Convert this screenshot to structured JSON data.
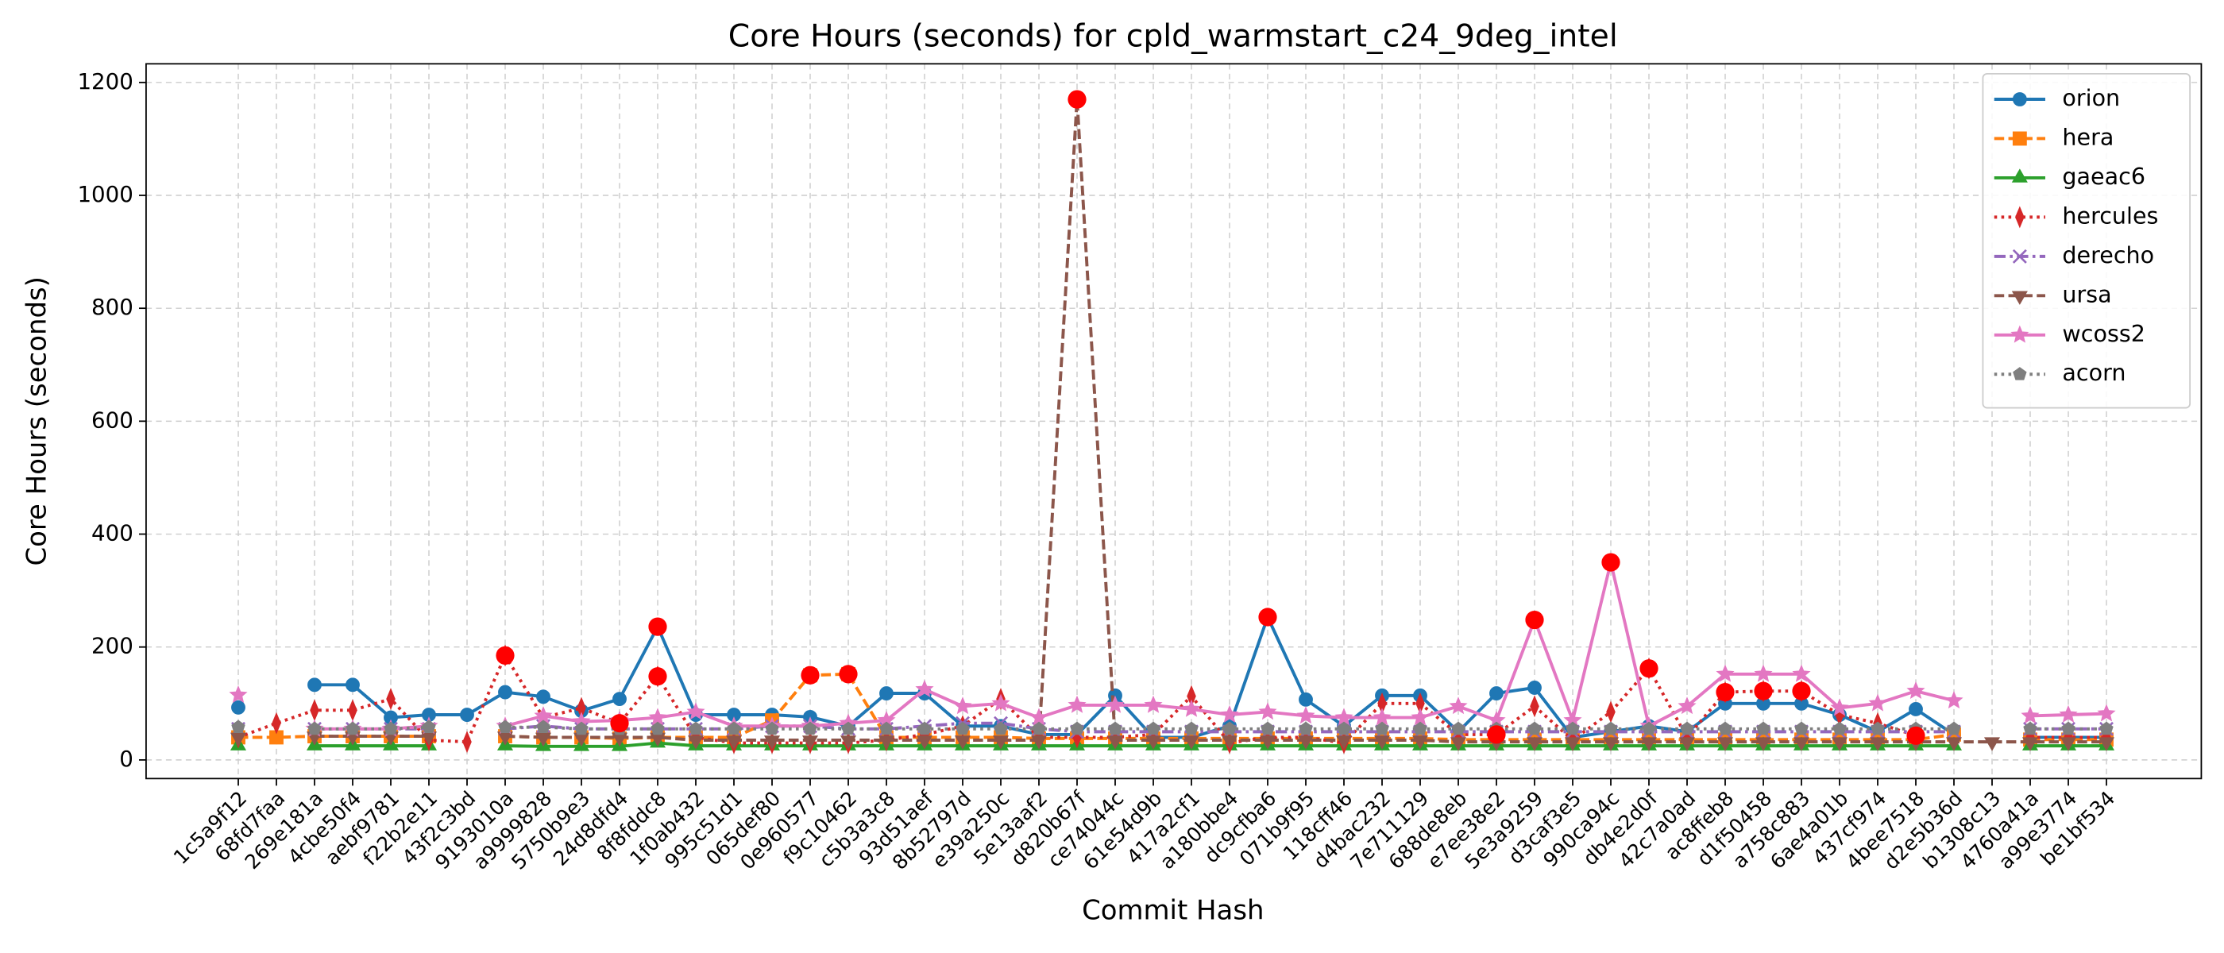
{
  "chart_data": {
    "type": "line",
    "title": "Core Hours (seconds) for cpld_warmstart_c24_9deg_intel",
    "xlabel": "Commit Hash",
    "ylabel": "Core Hours (seconds)",
    "categories": [
      "1c5a9f12",
      "68fd7faa",
      "269e181a",
      "4cbe50f4",
      "aebf9781",
      "f22b2e11",
      "43f2c3bd",
      "9193010a",
      "a9999828",
      "5750b9e3",
      "24d8dfd4",
      "8f8fddc8",
      "1f0ab432",
      "995c51d1",
      "065def80",
      "0e960577",
      "f9c10462",
      "c5b3a3c8",
      "93d51aef",
      "8b52797d",
      "e39a250c",
      "5e13aaf2",
      "d820b67f",
      "ce74044c",
      "61e54d9b",
      "417a2cf1",
      "a180bbe4",
      "dc9cfba6",
      "071b9f95",
      "118cff46",
      "d4bac232",
      "7e711129",
      "688de8eb",
      "e7ee38e2",
      "5e3a9259",
      "d3caf3e5",
      "990ca94c",
      "db4e2d0f",
      "42c7a0ad",
      "ac8ffeb8",
      "d1f50458",
      "a758c883",
      "6ae4a01b",
      "437cf974",
      "4bee7518",
      "d2e5b36d",
      "b1308c13",
      "4760a41a",
      "a99e3774",
      "be1bf534"
    ],
    "ylim": [
      -33,
      1233
    ],
    "yticks": [
      0,
      200,
      400,
      600,
      800,
      1000,
      1200
    ],
    "grid": true,
    "legend": "upper right",
    "highlight_color": "#ff0000",
    "series": [
      {
        "name": "orion",
        "color": "#1f77b4",
        "linestyle": "solid",
        "marker": "circle",
        "highlight": [
          11,
          27
        ],
        "values": [
          93,
          null,
          133,
          133,
          75,
          80,
          80,
          120,
          112,
          87,
          108,
          236,
          80,
          80,
          80,
          76,
          60,
          118,
          118,
          60,
          60,
          45,
          45,
          114,
          40,
          40,
          60,
          253,
          107,
          60,
          114,
          114,
          50,
          118,
          128,
          40,
          50,
          60,
          50,
          100,
          100,
          100,
          80,
          50,
          90,
          45,
          null,
          40,
          40,
          40
        ]
      },
      {
        "name": "hera",
        "color": "#ff7f0e",
        "linestyle": "dashed",
        "marker": "square",
        "highlight": [
          15,
          16
        ],
        "values": [
          40,
          40,
          42,
          42,
          42,
          42,
          null,
          42,
          40,
          40,
          38,
          40,
          40,
          40,
          70,
          150,
          152,
          40,
          40,
          40,
          40,
          38,
          38,
          38,
          38,
          38,
          38,
          38,
          38,
          38,
          38,
          38,
          36,
          36,
          36,
          36,
          36,
          36,
          36,
          36,
          36,
          36,
          36,
          36,
          36,
          45,
          null,
          36,
          36,
          36
        ]
      },
      {
        "name": "gaeac6",
        "color": "#2ca02c",
        "linestyle": "solid",
        "marker": "triangle-up",
        "highlight": [],
        "values": [
          25,
          null,
          25,
          25,
          25,
          25,
          null,
          25,
          24,
          24,
          24,
          30,
          25,
          25,
          25,
          25,
          25,
          25,
          25,
          25,
          25,
          25,
          25,
          25,
          25,
          25,
          25,
          25,
          25,
          25,
          25,
          25,
          25,
          25,
          25,
          25,
          25,
          25,
          25,
          25,
          25,
          25,
          25,
          25,
          25,
          25,
          null,
          25,
          25,
          25
        ]
      },
      {
        "name": "hercules",
        "color": "#d62728",
        "linestyle": "dotted",
        "marker": "diamond",
        "highlight": [
          7,
          10,
          11,
          33,
          37,
          39,
          40,
          41,
          44
        ],
        "values": [
          40,
          65,
          88,
          88,
          108,
          35,
          32,
          185,
          75,
          92,
          65,
          148,
          40,
          30,
          30,
          30,
          30,
          35,
          45,
          60,
          108,
          40,
          40,
          40,
          45,
          113,
          30,
          40,
          40,
          30,
          100,
          100,
          45,
          45,
          95,
          35,
          85,
          162,
          40,
          120,
          122,
          122,
          80,
          65,
          43,
          null,
          null,
          40,
          40,
          40
        ]
      },
      {
        "name": "derecho",
        "color": "#9467bd",
        "linestyle": "dashdot",
        "marker": "x",
        "highlight": [],
        "values": [
          55,
          null,
          55,
          55,
          55,
          55,
          null,
          55,
          60,
          55,
          55,
          55,
          55,
          55,
          60,
          60,
          55,
          55,
          60,
          65,
          65,
          55,
          50,
          50,
          50,
          50,
          50,
          50,
          50,
          50,
          50,
          50,
          50,
          50,
          50,
          50,
          50,
          50,
          50,
          50,
          50,
          50,
          50,
          50,
          50,
          50,
          null,
          55,
          55,
          55
        ]
      },
      {
        "name": "ursa",
        "color": "#8c564b",
        "linestyle": "dashed",
        "marker": "triangle-down",
        "highlight": [
          22
        ],
        "values": [
          40,
          null,
          42,
          42,
          42,
          42,
          null,
          42,
          40,
          40,
          40,
          40,
          35,
          35,
          35,
          35,
          35,
          35,
          35,
          35,
          35,
          35,
          1170,
          35,
          35,
          35,
          35,
          35,
          35,
          35,
          35,
          35,
          32,
          32,
          32,
          32,
          32,
          32,
          32,
          32,
          32,
          32,
          32,
          32,
          32,
          32,
          32,
          32,
          32,
          32
        ]
      },
      {
        "name": "wcoss2",
        "color": "#e377c2",
        "linestyle": "solid",
        "marker": "star",
        "highlight": [
          34,
          36
        ],
        "values": [
          115,
          null,
          55,
          55,
          55,
          60,
          null,
          60,
          78,
          68,
          70,
          75,
          85,
          60,
          60,
          60,
          65,
          70,
          125,
          95,
          100,
          75,
          97,
          97,
          97,
          90,
          80,
          85,
          78,
          75,
          75,
          75,
          95,
          70,
          248,
          70,
          350,
          60,
          95,
          152,
          152,
          152,
          92,
          100,
          122,
          105,
          null,
          78,
          80,
          82
        ]
      },
      {
        "name": "acorn",
        "color": "#7f7f7f",
        "linestyle": "dotted",
        "marker": "pentagon",
        "highlight": [],
        "values": [
          58,
          null,
          55,
          55,
          55,
          58,
          null,
          58,
          58,
          55,
          55,
          55,
          55,
          55,
          55,
          55,
          55,
          55,
          55,
          55,
          55,
          55,
          55,
          55,
          55,
          55,
          55,
          55,
          55,
          55,
          55,
          55,
          55,
          55,
          55,
          55,
          55,
          55,
          55,
          55,
          55,
          55,
          55,
          55,
          55,
          55,
          null,
          55,
          55,
          55
        ]
      }
    ]
  }
}
